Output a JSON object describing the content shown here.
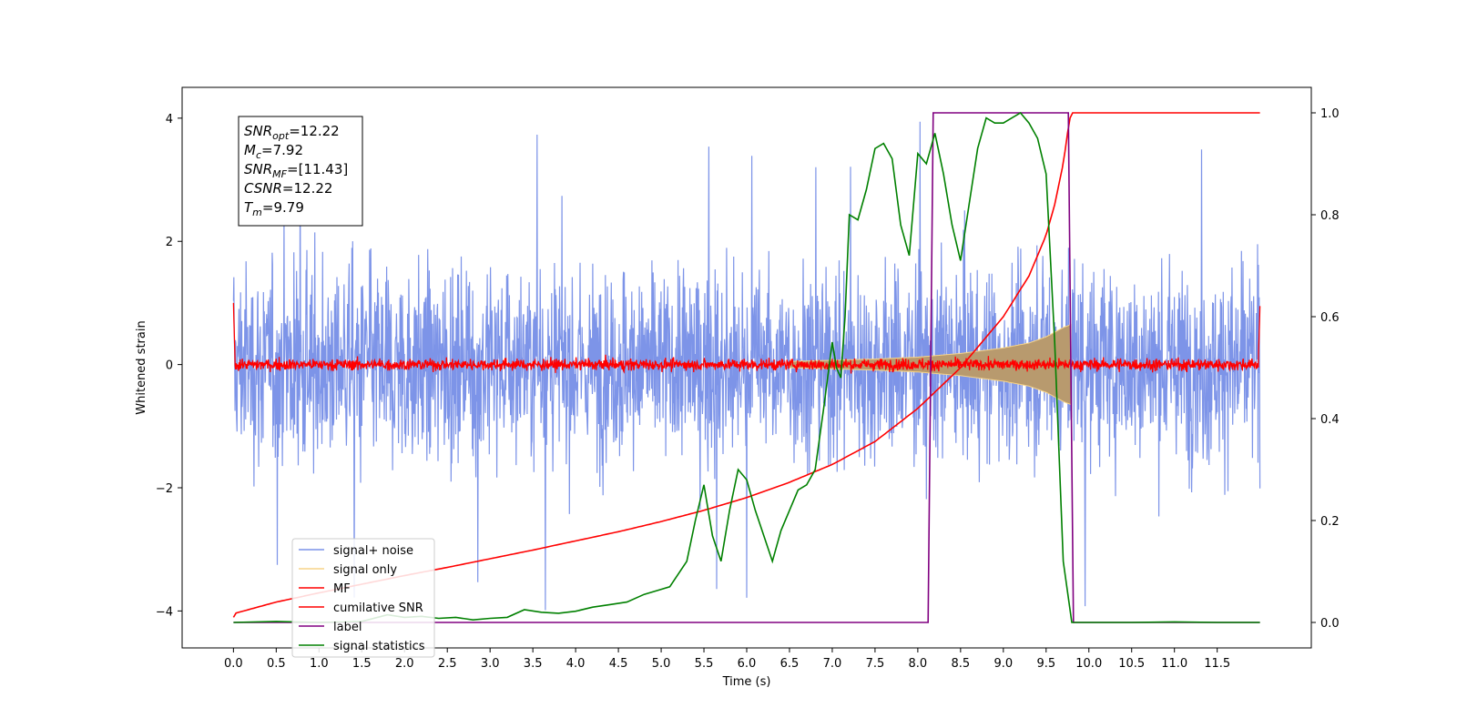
{
  "chart_data": {
    "type": "line",
    "xlabel": "Time (s)",
    "ylabel": "Whitened strain",
    "xlim": [
      -0.6,
      12.6
    ],
    "ylim_left": [
      -4.6,
      4.5
    ],
    "ylim_right": [
      -0.05,
      1.05
    ],
    "x_ticks": [
      0.0,
      0.5,
      1.0,
      1.5,
      2.0,
      2.5,
      3.0,
      3.5,
      4.0,
      4.5,
      5.0,
      5.5,
      6.0,
      6.5,
      7.0,
      7.5,
      8.0,
      8.5,
      9.0,
      9.5,
      10.0,
      10.5,
      11.0,
      11.5
    ],
    "x_tick_labels": [
      "0.0",
      "0.5",
      "1.0",
      "1.5",
      "2.0",
      "2.5",
      "3.0",
      "3.5",
      "4.0",
      "4.5",
      "5.0",
      "5.5",
      "6.0",
      "6.5",
      "7.0",
      "7.5",
      "8.0",
      "8.5",
      "9.0",
      "9.5",
      "10.0",
      "10.5",
      "11.0",
      "11.5"
    ],
    "y_ticks_left": [
      -4,
      -2,
      0,
      2,
      4
    ],
    "y_tick_labels_left": [
      "−4",
      "−2",
      "0",
      "2",
      "4"
    ],
    "y_ticks_right": [
      0.0,
      0.2,
      0.4,
      0.6,
      0.8,
      1.0
    ],
    "y_tick_labels_right": [
      "0.0",
      "0.2",
      "0.4",
      "0.6",
      "0.8",
      "1.0"
    ],
    "grid": false,
    "legend_position": "lower-left",
    "annotation": {
      "lines": [
        {
          "sym": "SNR",
          "sub": "opt",
          "value": "=12.22"
        },
        {
          "sym": "M",
          "sub": "c",
          "value": "=7.92"
        },
        {
          "sym": "SNR",
          "sub": "MF",
          "value": "=[11.43]"
        },
        {
          "sym": "CSNR",
          "sub": "",
          "value": "=12.22"
        },
        {
          "sym": "T",
          "sub": "m",
          "value": "=9.79"
        }
      ]
    },
    "series": [
      {
        "name": "signal+ noise",
        "axis": "left",
        "color": "#7a92e8",
        "kind": "noise",
        "x_range": [
          0.0,
          12.0
        ],
        "typical_amplitude": 1.1,
        "min_value": -4.1,
        "max_value": 4.0
      },
      {
        "name": "signal only",
        "axis": "left",
        "color": "#f7d488",
        "kind": "chirp",
        "x_range": [
          0.0,
          9.79
        ],
        "envelope_x": [
          6.5,
          7.0,
          7.5,
          8.0,
          8.5,
          9.0,
          9.3,
          9.5,
          9.7,
          9.79
        ],
        "envelope_amp": [
          0.05,
          0.07,
          0.09,
          0.12,
          0.18,
          0.27,
          0.35,
          0.45,
          0.6,
          0.65
        ]
      },
      {
        "name": "MF",
        "axis": "left",
        "color": "#ff0000",
        "kind": "noise",
        "x_range": [
          0.0,
          12.0
        ],
        "typical_amplitude": 0.12,
        "start_value": 1.0,
        "end_value": 0.95
      },
      {
        "name": "cumilative SNR",
        "axis": "right",
        "color": "#ff0000",
        "x": [
          0.0,
          0.02,
          0.5,
          1.0,
          1.5,
          2.0,
          2.5,
          3.0,
          3.5,
          4.0,
          4.5,
          5.0,
          5.5,
          6.0,
          6.5,
          7.0,
          7.5,
          8.0,
          8.5,
          9.0,
          9.3,
          9.5,
          9.6,
          9.7,
          9.75,
          9.79,
          10.0,
          10.5,
          11.0,
          11.5,
          12.0
        ],
        "y": [
          0.01,
          0.018,
          0.04,
          0.058,
          0.075,
          0.092,
          0.108,
          0.125,
          0.142,
          0.16,
          0.178,
          0.198,
          0.22,
          0.245,
          0.275,
          0.31,
          0.355,
          0.42,
          0.5,
          0.6,
          0.68,
          0.76,
          0.82,
          0.9,
          0.96,
          1.0,
          1.0,
          1.0,
          1.0,
          1.0,
          1.0
        ]
      },
      {
        "name": "label",
        "axis": "right",
        "color": "#800080",
        "x": [
          0.0,
          8.12,
          8.18,
          9.76,
          9.82,
          12.0
        ],
        "y": [
          0.0,
          0.0,
          1.0,
          1.0,
          0.0,
          0.0
        ]
      },
      {
        "name": "signal statistics",
        "axis": "right",
        "color": "#008000",
        "x": [
          0.0,
          0.5,
          1.0,
          1.5,
          1.8,
          2.0,
          2.2,
          2.4,
          2.6,
          2.8,
          3.0,
          3.2,
          3.4,
          3.6,
          3.8,
          4.0,
          4.2,
          4.4,
          4.6,
          4.8,
          5.0,
          5.1,
          5.3,
          5.4,
          5.5,
          5.6,
          5.7,
          5.8,
          5.9,
          6.0,
          6.1,
          6.2,
          6.3,
          6.4,
          6.5,
          6.6,
          6.7,
          6.8,
          6.9,
          7.0,
          7.05,
          7.1,
          7.15,
          7.2,
          7.3,
          7.4,
          7.5,
          7.6,
          7.7,
          7.8,
          7.9,
          8.0,
          8.1,
          8.2,
          8.3,
          8.4,
          8.5,
          8.6,
          8.7,
          8.8,
          8.9,
          9.0,
          9.1,
          9.2,
          9.3,
          9.4,
          9.5,
          9.6,
          9.7,
          9.8,
          10.0,
          10.5,
          11.0,
          11.5,
          12.0
        ],
        "y": [
          0.0,
          0.002,
          0.0,
          0.002,
          0.015,
          0.01,
          0.012,
          0.008,
          0.01,
          0.005,
          0.008,
          0.01,
          0.025,
          0.02,
          0.018,
          0.022,
          0.03,
          0.035,
          0.04,
          0.055,
          0.065,
          0.07,
          0.12,
          0.2,
          0.27,
          0.17,
          0.12,
          0.22,
          0.3,
          0.28,
          0.22,
          0.17,
          0.12,
          0.18,
          0.22,
          0.26,
          0.27,
          0.3,
          0.42,
          0.55,
          0.5,
          0.48,
          0.6,
          0.8,
          0.79,
          0.85,
          0.93,
          0.94,
          0.91,
          0.78,
          0.72,
          0.92,
          0.9,
          0.96,
          0.88,
          0.78,
          0.71,
          0.82,
          0.93,
          0.99,
          0.98,
          0.98,
          0.99,
          1.0,
          0.98,
          0.95,
          0.88,
          0.55,
          0.12,
          0.0,
          0.0,
          0.0,
          0.001,
          0.0,
          0.0
        ]
      }
    ]
  }
}
